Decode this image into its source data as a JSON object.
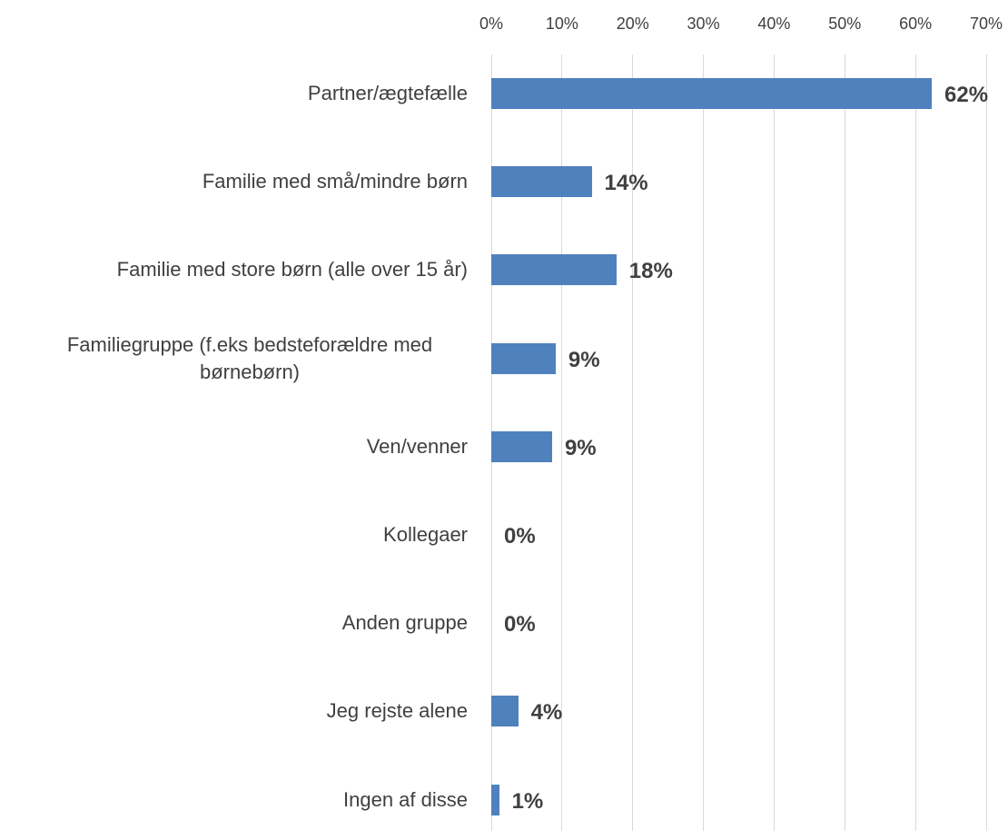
{
  "chart_data": {
    "type": "bar",
    "orientation": "horizontal",
    "categories": [
      "Partner/ægtefælle",
      "Familie med små/mindre børn",
      "Familie med store børn (alle over 15 år)",
      "Familiegruppe (f.eks bedsteforældre med børnebørn)",
      "Ven/venner",
      "Kollegaer",
      "Anden gruppe",
      "Jeg rejste alene",
      "Ingen af disse"
    ],
    "values": [
      62.3,
      14.2,
      17.7,
      9.1,
      8.6,
      0,
      0,
      3.8,
      1.1
    ],
    "value_labels": [
      "62%",
      "14%",
      "18%",
      "9%",
      "9%",
      "0%",
      "0%",
      "4%",
      "1%"
    ],
    "color": "#4f81bd",
    "xlim": [
      0,
      70
    ],
    "xticks": [
      {
        "value": 0,
        "label": "0%"
      },
      {
        "value": 10,
        "label": "10%"
      },
      {
        "value": 20,
        "label": "20%"
      },
      {
        "value": 30,
        "label": "30%"
      },
      {
        "value": 40,
        "label": "40%"
      },
      {
        "value": 50,
        "label": "50%"
      },
      {
        "value": 60,
        "label": "60%"
      },
      {
        "value": 70,
        "label": "70%"
      }
    ],
    "grid": true
  }
}
